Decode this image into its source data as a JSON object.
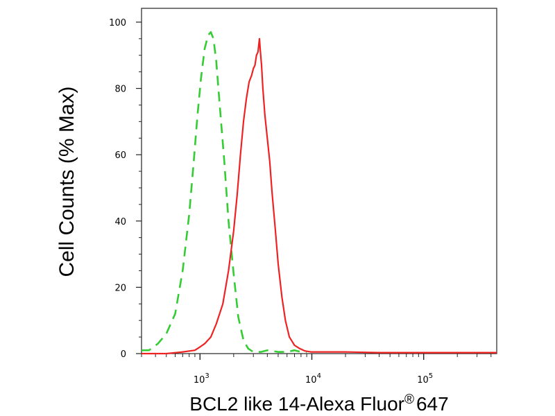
{
  "chart_data": {
    "type": "line",
    "title": "",
    "xlabel": {
      "main": "BCL2 like 14-Alexa Fluor",
      "registered": "®",
      "suffix": "647"
    },
    "ylabel": "Cell Counts (% Max)",
    "x_scale": "log",
    "xlim": [
      300,
      450000
    ],
    "ylim": [
      0,
      100
    ],
    "y_ticks": [
      {
        "value": 0,
        "label": "0"
      },
      {
        "value": 20,
        "label": "20"
      },
      {
        "value": 40,
        "label": "40"
      },
      {
        "value": 60,
        "label": "60"
      },
      {
        "value": 80,
        "label": "80"
      },
      {
        "value": 100,
        "label": "100"
      }
    ],
    "x_ticks": [
      {
        "value": 1000,
        "base": "10",
        "exp": "3"
      },
      {
        "value": 10000,
        "base": "10",
        "exp": "4"
      },
      {
        "value": 100000,
        "base": "10",
        "exp": "5"
      }
    ],
    "grid": false,
    "legend": "none",
    "series": [
      {
        "color": "#33cc33",
        "dash": "dashed",
        "x": [
          300,
          350,
          420,
          500,
          600,
          700,
          800,
          880,
          950,
          1020,
          1100,
          1180,
          1250,
          1320,
          1400,
          1500,
          1650,
          1800,
          2000,
          2200,
          2450,
          2700,
          3000,
          3500,
          4000,
          5000,
          6000,
          7000,
          8000,
          9000
        ],
        "y": [
          1,
          1,
          3,
          6,
          12,
          25,
          42,
          58,
          72,
          83,
          92,
          96,
          97,
          95,
          88,
          75,
          58,
          40,
          24,
          11,
          4,
          1.5,
          0.5,
          0.5,
          1,
          0.5,
          0.5,
          1,
          0.5,
          0.5
        ]
      },
      {
        "color": "#ee2222",
        "dash": "solid",
        "x": [
          300,
          500,
          700,
          900,
          1000,
          1100,
          1250,
          1400,
          1600,
          1800,
          2000,
          2150,
          2300,
          2450,
          2600,
          2750,
          2900,
          3000,
          3100,
          3200,
          3300,
          3350,
          3400,
          3450,
          3550,
          3650,
          3800,
          4000,
          4200,
          4400,
          4700,
          5000,
          5400,
          5800,
          6300,
          7000,
          7800,
          8700,
          9800,
          11000,
          14000,
          20000,
          40000,
          100000,
          450000
        ],
        "y": [
          0,
          0,
          0.5,
          1,
          2,
          3,
          5,
          9,
          15,
          25,
          37,
          48,
          60,
          70,
          77,
          82,
          84,
          86,
          87,
          90,
          91,
          93,
          95,
          92,
          87,
          80,
          72,
          65,
          58,
          49,
          38,
          27,
          17,
          10,
          5,
          2.5,
          1.5,
          0.8,
          0.5,
          0.5,
          0.5,
          0.5,
          0.3,
          0.3,
          0.3
        ]
      }
    ]
  }
}
